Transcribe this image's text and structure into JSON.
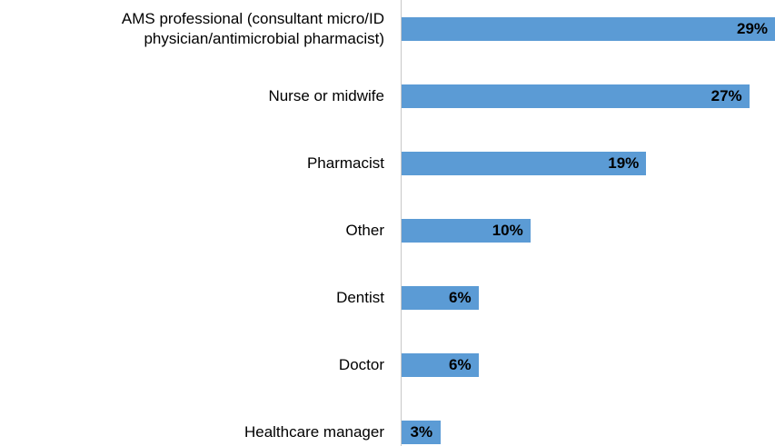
{
  "chart_data": {
    "type": "bar",
    "orientation": "horizontal",
    "categories": [
      "AMS professional (consultant micro/ID\nphysician/antimicrobial pharmacist)",
      "Nurse or midwife",
      "Pharmacist",
      "Other",
      "Dentist",
      "Doctor",
      "Healthcare manager"
    ],
    "values": [
      29,
      27,
      19,
      10,
      6,
      6,
      3
    ],
    "value_labels": [
      "29%",
      "27%",
      "19%",
      "10%",
      "6%",
      "6%",
      "3%"
    ],
    "color": "#5b9bd5"
  }
}
